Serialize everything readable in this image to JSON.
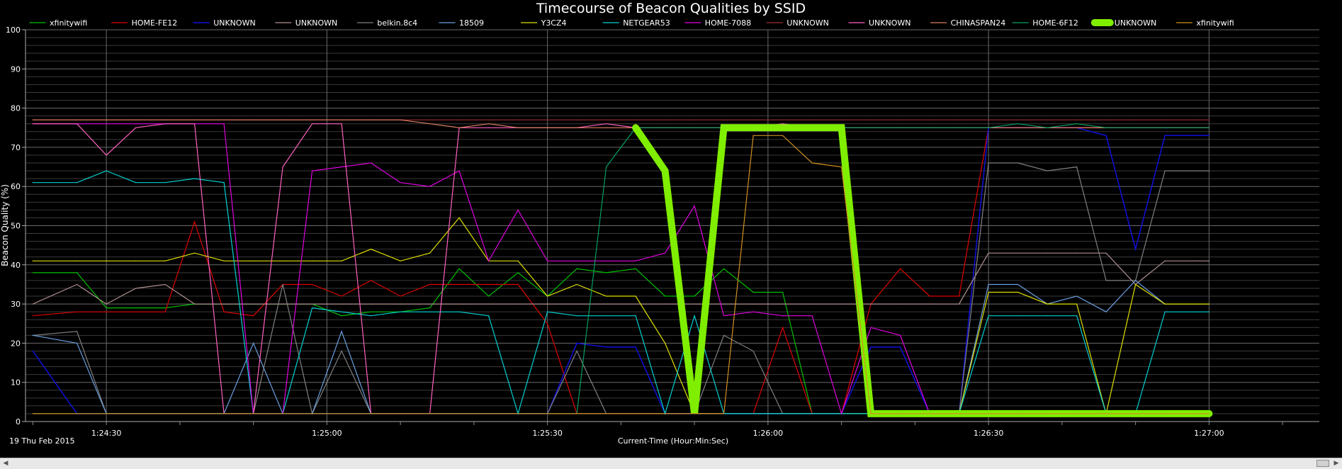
{
  "chart_data": {
    "type": "line",
    "title": "Timecourse of Beacon Qualities by SSID",
    "xlabel": "Current-Time (Hour:Min:Sec)",
    "ylabel": "Beacon Quality (%)",
    "date_label": "19 Thu Feb 2015",
    "ylim": [
      0,
      100
    ],
    "yticks": [
      "0",
      "10",
      "20",
      "30",
      "40",
      "50",
      "60",
      "70",
      "80",
      "90",
      "100"
    ],
    "xlim": [
      "1:24:19",
      "1:27:15"
    ],
    "xticks": [
      "1:24:30",
      "1:25:00",
      "1:25:30",
      "1:26:00",
      "1:26:30",
      "1:27:00"
    ],
    "grid": true,
    "legend_position": "top",
    "x": [
      "1:24:20",
      "1:24:26",
      "1:24:30",
      "1:24:34",
      "1:24:38",
      "1:24:42",
      "1:24:46",
      "1:24:50",
      "1:24:54",
      "1:24:58",
      "1:25:02",
      "1:25:06",
      "1:25:10",
      "1:25:14",
      "1:25:18",
      "1:25:22",
      "1:25:26",
      "1:25:30",
      "1:25:34",
      "1:25:38",
      "1:25:42",
      "1:25:46",
      "1:25:50",
      "1:25:54",
      "1:25:58",
      "1:26:02",
      "1:26:06",
      "1:26:10",
      "1:26:14",
      "1:26:18",
      "1:26:22",
      "1:26:26",
      "1:26:30",
      "1:26:34",
      "1:26:38",
      "1:26:42",
      "1:26:46",
      "1:26:50",
      "1:26:54",
      "1:26:58",
      "1:27:00"
    ],
    "series": [
      {
        "name": "xfinitywifi",
        "color": "#00c000",
        "width": 1.2,
        "values": [
          38,
          38,
          29,
          29,
          29,
          30,
          30,
          30,
          30,
          30,
          27,
          28,
          28,
          29,
          39,
          32,
          38,
          32,
          39,
          38,
          39,
          32,
          32,
          39,
          33,
          33,
          2,
          2,
          2,
          2,
          2,
          2,
          2,
          2,
          2,
          2,
          2,
          2,
          2,
          2,
          2
        ]
      },
      {
        "name": "HOME-FE12",
        "color": "#e00000",
        "width": 1.2,
        "values": [
          27,
          28,
          28,
          28,
          28,
          51,
          28,
          27,
          35,
          35,
          32,
          36,
          32,
          35,
          35,
          35,
          35,
          25,
          2,
          2,
          2,
          2,
          2,
          2,
          2,
          24,
          2,
          2,
          30,
          39,
          32,
          32,
          75,
          75,
          75,
          75,
          75,
          75,
          75,
          75,
          75
        ]
      },
      {
        "name": "UNKNOWN",
        "color": "#1010dd",
        "width": 1.5,
        "values": [
          18,
          2,
          2,
          2,
          2,
          2,
          2,
          2,
          2,
          2,
          2,
          2,
          2,
          2,
          2,
          2,
          2,
          2,
          20,
          19,
          19,
          2,
          2,
          2,
          2,
          2,
          2,
          2,
          19,
          19,
          2,
          2,
          75,
          75,
          75,
          75,
          73,
          44,
          73,
          73,
          73
        ]
      },
      {
        "name": "UNKNOWN",
        "color": "#b09090",
        "width": 1.2,
        "values": [
          30,
          35,
          30,
          34,
          35,
          30,
          30,
          30,
          30,
          30,
          30,
          30,
          30,
          30,
          30,
          30,
          30,
          30,
          30,
          30,
          30,
          30,
          30,
          30,
          30,
          30,
          30,
          30,
          30,
          30,
          30,
          30,
          43,
          43,
          43,
          43,
          43,
          35,
          41,
          41,
          41
        ]
      },
      {
        "name": "belkin.8c4",
        "color": "#808080",
        "width": 1.2,
        "values": [
          22,
          23,
          2,
          2,
          2,
          2,
          2,
          2,
          35,
          2,
          18,
          2,
          2,
          2,
          2,
          2,
          2,
          2,
          18,
          2,
          2,
          2,
          2,
          22,
          18,
          2,
          2,
          2,
          2,
          2,
          2,
          2,
          66,
          66,
          64,
          65,
          36,
          36,
          64,
          64,
          64
        ]
      },
      {
        "name": "18509",
        "color": "#6aa0e0",
        "width": 1.2,
        "values": [
          22,
          20,
          2,
          2,
          2,
          2,
          2,
          20,
          2,
          2,
          23,
          2,
          2,
          2,
          2,
          2,
          2,
          2,
          2,
          2,
          2,
          2,
          2,
          2,
          2,
          2,
          2,
          2,
          2,
          2,
          2,
          2,
          35,
          35,
          30,
          32,
          28,
          36,
          30,
          30,
          30
        ]
      },
      {
        "name": "Y3CZ4",
        "color": "#e0e000",
        "width": 1.2,
        "values": [
          41,
          41,
          41,
          41,
          41,
          43,
          41,
          41,
          41,
          41,
          41,
          44,
          41,
          43,
          52,
          41,
          41,
          32,
          35,
          32,
          32,
          20,
          2,
          2,
          2,
          2,
          2,
          2,
          2,
          2,
          2,
          2,
          33,
          33,
          30,
          30,
          2,
          35,
          30,
          30,
          30
        ]
      },
      {
        "name": "NETGEAR53",
        "color": "#00d0d0",
        "width": 1.2,
        "values": [
          61,
          61,
          64,
          61,
          61,
          62,
          61,
          2,
          2,
          29,
          28,
          27,
          28,
          28,
          28,
          27,
          2,
          28,
          27,
          27,
          27,
          2,
          27,
          2,
          2,
          2,
          2,
          2,
          2,
          2,
          2,
          2,
          27,
          27,
          27,
          27,
          2,
          2,
          28,
          28,
          28
        ]
      },
      {
        "name": "HOME-7088",
        "color": "#e000e0",
        "width": 1.2,
        "values": [
          76,
          76,
          76,
          76,
          76,
          76,
          76,
          2,
          2,
          64,
          65,
          66,
          61,
          60,
          64,
          41,
          54,
          41,
          41,
          41,
          41,
          43,
          55,
          27,
          28,
          27,
          27,
          2,
          24,
          22,
          2,
          2,
          2,
          2,
          2,
          2,
          2,
          2,
          2,
          2,
          2
        ]
      },
      {
        "name": "UNKNOWN",
        "color": "#a03030",
        "width": 1.2,
        "values": [
          77,
          77,
          77,
          77,
          77,
          77,
          77,
          77,
          77,
          77,
          77,
          77,
          77,
          77,
          77,
          77,
          77,
          77,
          77,
          77,
          77,
          77,
          77,
          77,
          77,
          77,
          77,
          77,
          77,
          77,
          77,
          77,
          77,
          77,
          77,
          77,
          77,
          77,
          77,
          77,
          77
        ]
      },
      {
        "name": "UNKNOWN",
        "color": "#ff60c0",
        "width": 1.2,
        "values": [
          76,
          76,
          68,
          75,
          76,
          76,
          2,
          2,
          65,
          76,
          76,
          2,
          2,
          2,
          75,
          75,
          75,
          75,
          75,
          76,
          75,
          75,
          75,
          75,
          75,
          76,
          75,
          75,
          75,
          75,
          75,
          75,
          75,
          75,
          75,
          75,
          75,
          75,
          75,
          75,
          75
        ]
      },
      {
        "name": "CHINASPAN24",
        "color": "#e08060",
        "width": 1.2,
        "values": [
          77,
          77,
          77,
          77,
          77,
          77,
          77,
          77,
          77,
          77,
          77,
          77,
          77,
          76,
          75,
          76,
          75,
          75,
          75,
          75,
          75,
          75,
          75,
          75,
          75,
          75,
          75,
          75,
          75,
          75,
          75,
          75,
          75,
          75,
          75,
          75,
          75,
          75,
          75,
          75,
          75
        ]
      },
      {
        "name": "HOME-6F12",
        "color": "#00a060",
        "width": 1.2,
        "values": [
          2,
          2,
          2,
          2,
          2,
          2,
          2,
          2,
          2,
          2,
          2,
          2,
          2,
          2,
          2,
          2,
          2,
          2,
          2,
          65,
          75,
          75,
          75,
          75,
          75,
          75,
          75,
          75,
          75,
          75,
          75,
          75,
          75,
          76,
          75,
          76,
          75,
          75,
          75,
          75,
          75
        ]
      },
      {
        "name": "UNKNOWN",
        "color": "#80ee00",
        "width": 10,
        "values": [
          null,
          null,
          null,
          null,
          null,
          null,
          null,
          null,
          null,
          null,
          null,
          null,
          null,
          null,
          null,
          null,
          null,
          null,
          null,
          null,
          75,
          64,
          2,
          75,
          75,
          75,
          75,
          75,
          2,
          2,
          2,
          2,
          2,
          2,
          2,
          2,
          2,
          2,
          2,
          2,
          2
        ]
      },
      {
        "name": "xfinitywifi",
        "color": "#d09020",
        "width": 1.2,
        "values": [
          2,
          2,
          2,
          2,
          2,
          2,
          2,
          2,
          2,
          2,
          2,
          2,
          2,
          2,
          2,
          2,
          2,
          2,
          2,
          2,
          2,
          2,
          2,
          2,
          73,
          73,
          66,
          65,
          2,
          2,
          2,
          2,
          2,
          2,
          2,
          2,
          2,
          2,
          2,
          2,
          2
        ]
      }
    ]
  }
}
